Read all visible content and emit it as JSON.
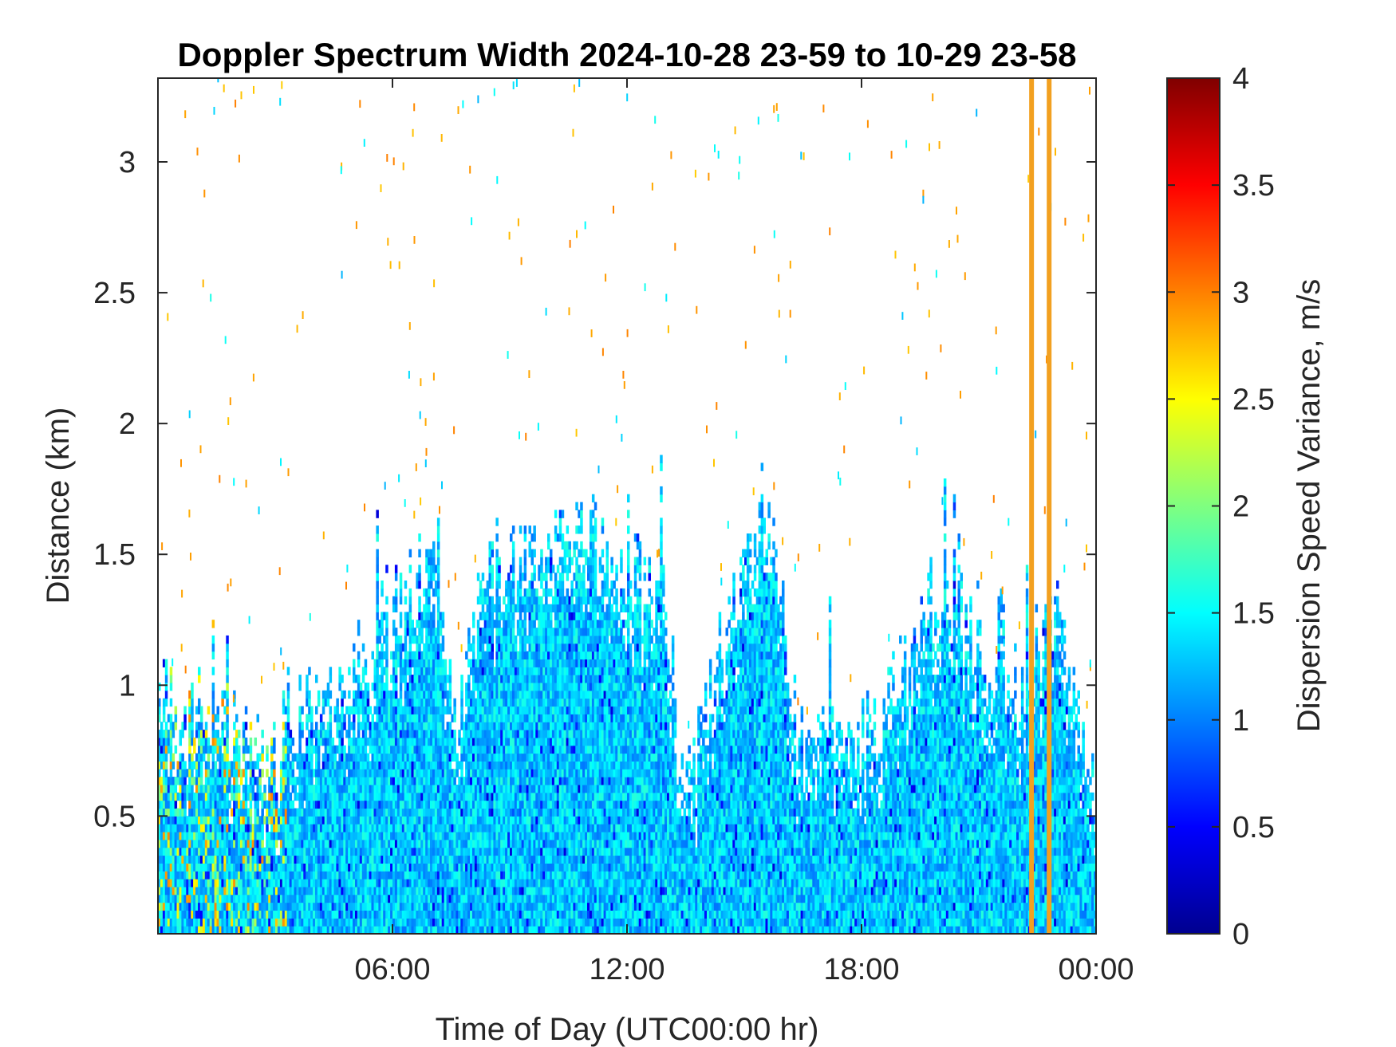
{
  "chart_data": {
    "type": "heatmap",
    "title": "Doppler Spectrum Width 2024-10-28 23-59 to 10-29 23-58",
    "xlabel": "Time of Day (UTC00:00 hr)",
    "ylabel": "Distance (km)",
    "colorbar_label": "Dispersion Speed Variance, m/s",
    "colormap": "jet",
    "x_range_hours": [
      0,
      24
    ],
    "y_range_km": [
      0.05,
      3.32
    ],
    "clim": [
      0,
      4
    ],
    "x_ticks": [
      {
        "value": 6,
        "label": "06:00"
      },
      {
        "value": 12,
        "label": "12:00"
      },
      {
        "value": 18,
        "label": "18:00"
      },
      {
        "value": 24,
        "label": "00:00"
      }
    ],
    "y_ticks": [
      {
        "value": 0.5,
        "label": "0.5"
      },
      {
        "value": 1,
        "label": "1"
      },
      {
        "value": 1.5,
        "label": "1.5"
      },
      {
        "value": 2,
        "label": "2"
      },
      {
        "value": 2.5,
        "label": "2.5"
      },
      {
        "value": 3,
        "label": "3"
      }
    ],
    "colorbar_ticks": [
      {
        "value": 0,
        "label": "0"
      },
      {
        "value": 0.5,
        "label": "0.5"
      },
      {
        "value": 1,
        "label": "1"
      },
      {
        "value": 1.5,
        "label": "1.5"
      },
      {
        "value": 2,
        "label": "2"
      },
      {
        "value": 2.5,
        "label": "2.5"
      },
      {
        "value": 3,
        "label": "3"
      },
      {
        "value": 3.5,
        "label": "3.5"
      },
      {
        "value": 4,
        "label": "4"
      }
    ],
    "typical_value_ms": 1.3,
    "echo_top_profile": {
      "hours": [
        0,
        0.5,
        1,
        1.5,
        2,
        2.5,
        3,
        3.2,
        3.5,
        4,
        4.5,
        5,
        5.5,
        6,
        6.3,
        6.6,
        7,
        7.3,
        7.6,
        8,
        8.5,
        9,
        9.5,
        10,
        10.5,
        11,
        11.5,
        12,
        12.5,
        13,
        13.3,
        13.6,
        14,
        14.5,
        15,
        15.5,
        15.8,
        16,
        16.3,
        16.6,
        17,
        17.5,
        18,
        18.5,
        19,
        19.5,
        20,
        20.5,
        21,
        21.5,
        22,
        22.3,
        22.6,
        23,
        23.3,
        23.6,
        24
      ],
      "top_km": [
        0.95,
        0.85,
        0.9,
        0.82,
        0.8,
        0.8,
        0.6,
        0.92,
        0.9,
        0.92,
        0.95,
        1.0,
        1.05,
        1.15,
        1.35,
        1.45,
        1.5,
        1.1,
        0.82,
        1.2,
        1.45,
        1.5,
        1.45,
        1.55,
        1.65,
        1.6,
        1.45,
        1.4,
        1.4,
        1.3,
        0.72,
        0.7,
        0.9,
        1.2,
        1.5,
        1.7,
        1.6,
        1.2,
        0.8,
        0.75,
        0.85,
        0.9,
        0.78,
        0.9,
        1.1,
        1.35,
        1.3,
        1.25,
        1.15,
        1.0,
        0.95,
        1.05,
        1.2,
        1.25,
        1.1,
        0.75,
        0.62
      ]
    },
    "marker_lines": [
      {
        "hour": 22.35,
        "color": "#F2A020"
      },
      {
        "hour": 22.8,
        "color": "#F2A020"
      }
    ]
  }
}
